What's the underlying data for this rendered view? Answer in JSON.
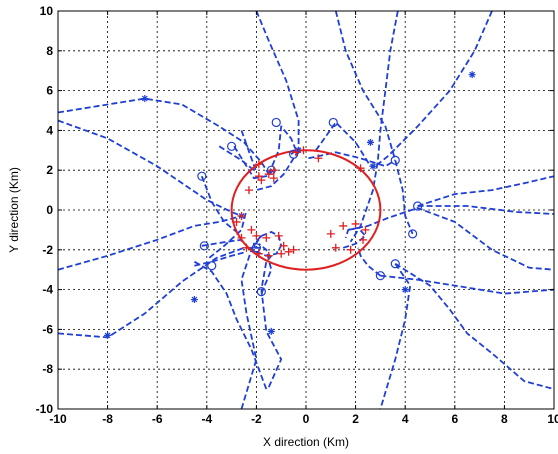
{
  "chart_data": {
    "type": "line",
    "title": "",
    "xlabel": "X direction (Km)",
    "ylabel": "Y direction (Km)",
    "xlim": [
      -10,
      10
    ],
    "ylim": [
      -10,
      10
    ],
    "xticks": [
      "-10",
      "-8",
      "-6",
      "-4",
      "-2",
      "0",
      "2",
      "4",
      "6",
      "8",
      "10"
    ],
    "yticks": [
      "10",
      "8",
      "6",
      "4",
      "2",
      "0",
      "-2",
      "-4",
      "-6",
      "-8",
      "-10"
    ],
    "grid": true,
    "legend": "none",
    "colors": {
      "trajectory": "#1f3fd6",
      "circle": "#e02020",
      "marker": "#e02020"
    },
    "circle": {
      "center": [
        0,
        0
      ],
      "radius_x": 3,
      "radius_y": 3
    },
    "series": [
      {
        "points": [
          [
            -10,
            4.9
          ],
          [
            -7.5,
            5.4
          ],
          [
            -6.5,
            5.6
          ],
          [
            -5,
            5.3
          ],
          [
            -3.5,
            4.2
          ],
          [
            -2.5,
            3.4
          ],
          [
            -1.8,
            2.4
          ],
          [
            -1.5,
            1.8
          ]
        ]
      },
      {
        "points": [
          [
            -10,
            4.5
          ],
          [
            -8,
            3.6
          ],
          [
            -6,
            2.2
          ],
          [
            -4,
            0.5
          ],
          [
            -3,
            -0.1
          ],
          [
            -2.6,
            -0.3
          ]
        ]
      },
      {
        "points": [
          [
            -10,
            -3
          ],
          [
            -8,
            -2.3
          ],
          [
            -6,
            -1.5
          ],
          [
            -4.5,
            -0.8
          ],
          [
            -3.5,
            -0.6
          ],
          [
            -2.6,
            -0.3
          ]
        ]
      },
      {
        "points": [
          [
            -10,
            -6.2
          ],
          [
            -8,
            -6.4
          ],
          [
            -6.5,
            -5.2
          ],
          [
            -5,
            -3.6
          ],
          [
            -3.6,
            -2.4
          ],
          [
            -2.5,
            -1.9
          ],
          [
            -1.8,
            -1.9
          ]
        ]
      },
      {
        "points": [
          [
            -3.9,
            -2.4
          ],
          [
            -3.3,
            -1.8
          ],
          [
            -2.6,
            -1.0
          ],
          [
            -2.4,
            0.0
          ]
        ]
      },
      {
        "points": [
          [
            -4.2,
            -1.8
          ],
          [
            -3.2,
            -1.6
          ],
          [
            -2.6,
            -1.5
          ]
        ]
      },
      {
        "points": [
          [
            -4.2,
            1.7
          ],
          [
            -3.8,
            0.4
          ],
          [
            -3.3,
            -0.6
          ],
          [
            -2.8,
            -1.1
          ]
        ]
      },
      {
        "points": [
          [
            -3.5,
            3.2
          ],
          [
            -2.6,
            2.5
          ],
          [
            -2.0,
            1.9
          ]
        ]
      },
      {
        "points": [
          [
            -2.6,
            4.0
          ],
          [
            -2.2,
            2.6
          ],
          [
            -2.0,
            1.9
          ]
        ]
      },
      {
        "points": [
          [
            -2.9,
            3.2
          ],
          [
            -2.4,
            2.2
          ],
          [
            -2.1,
            1.6
          ],
          [
            -1.6,
            1.7
          ],
          [
            -1.3,
            2.0
          ]
        ]
      },
      {
        "points": [
          [
            -1.8,
            -4.2
          ],
          [
            -1.4,
            -3.0
          ],
          [
            -1.6,
            -2.0
          ],
          [
            -1.9,
            -1.7
          ]
        ]
      },
      {
        "points": [
          [
            -4.5,
            -2.8
          ],
          [
            -3.8,
            -2.6
          ],
          [
            -3.0,
            -2.3
          ],
          [
            -2.4,
            -2.1
          ]
        ]
      },
      {
        "points": [
          [
            -1.5,
            -8.9
          ],
          [
            -1.0,
            -7.5
          ],
          [
            -1.6,
            -6.1
          ],
          [
            -1.8,
            -4.0
          ],
          [
            -1.6,
            -2.6
          ],
          [
            -1.4,
            -2.3
          ]
        ]
      },
      {
        "points": [
          [
            -2.6,
            -10
          ],
          [
            -2.0,
            -7.5
          ],
          [
            -2.4,
            -5.2
          ],
          [
            -2.6,
            -3.5
          ],
          [
            -2.2,
            -2.0
          ],
          [
            -1.8,
            -1.3
          ]
        ]
      },
      {
        "points": [
          [
            -1.8,
            -1.3
          ],
          [
            -1.4,
            -1.1
          ],
          [
            -1.1,
            -1.3
          ],
          [
            -1.0,
            -1.8
          ],
          [
            -1.2,
            -2.2
          ],
          [
            -1.6,
            -2.3
          ],
          [
            -2.0,
            -2.1
          ],
          [
            -2.1,
            -1.7
          ],
          [
            -1.8,
            -1.3
          ]
        ]
      },
      {
        "points": [
          [
            -4.5,
            -2.6
          ],
          [
            -3.8,
            -3.1
          ],
          [
            -3.2,
            -4.2
          ],
          [
            -2.8,
            -5.5
          ],
          [
            -2.2,
            -7.0
          ],
          [
            -1.6,
            -9.0
          ]
        ]
      },
      {
        "points": [
          [
            -1.5,
            1.8
          ],
          [
            -1.1,
            3.0
          ],
          [
            -1.0,
            4.2
          ],
          [
            -0.6,
            3.6
          ],
          [
            -0.4,
            3.0
          ],
          [
            -0.6,
            2.8
          ]
        ]
      },
      {
        "points": [
          [
            -2.0,
            10
          ],
          [
            -1.5,
            8.5
          ],
          [
            -0.8,
            6.5
          ],
          [
            -0.3,
            4.5
          ],
          [
            -0.3,
            3.0
          ]
        ]
      },
      {
        "points": [
          [
            -0.3,
            3.0
          ],
          [
            -0.9,
            1.8
          ],
          [
            -1.4,
            1.2
          ],
          [
            -2.0,
            1.0
          ]
        ]
      },
      {
        "points": [
          [
            0.4,
            3.0
          ],
          [
            1.2,
            4.4
          ],
          [
            2.0,
            3.4
          ],
          [
            2.6,
            2.2
          ]
        ]
      },
      {
        "points": [
          [
            0.1,
            2.6
          ],
          [
            1.2,
            2.9
          ],
          [
            2.2,
            2.6
          ],
          [
            3.2,
            2.2
          ],
          [
            3.6,
            2.5
          ]
        ]
      },
      {
        "points": [
          [
            3.6,
            2.5
          ],
          [
            3.9,
            1.0
          ],
          [
            4.0,
            -0.3
          ],
          [
            4.3,
            -1.2
          ]
        ]
      },
      {
        "points": [
          [
            1.5,
            -1.9
          ],
          [
            2.0,
            -1.7
          ],
          [
            2.4,
            -1.3
          ],
          [
            2.1,
            -0.9
          ],
          [
            1.7,
            -1.0
          ],
          [
            1.6,
            -1.4
          ]
        ]
      },
      {
        "points": [
          [
            1.7,
            -1.0
          ],
          [
            2.5,
            -0.8
          ],
          [
            3.3,
            -0.4
          ],
          [
            4.5,
            0.1
          ],
          [
            6.0,
            -0.6
          ],
          [
            7.5,
            -2.0
          ],
          [
            9.0,
            -2.9
          ],
          [
            10,
            -3.0
          ]
        ]
      },
      {
        "points": [
          [
            4.5,
            0.2
          ],
          [
            6.5,
            0.2
          ],
          [
            8.5,
            -0.1
          ],
          [
            10,
            -0.2
          ]
        ]
      },
      {
        "points": [
          [
            4.5,
            0.2
          ],
          [
            6.0,
            0.8
          ],
          [
            7.5,
            1.0
          ],
          [
            9.0,
            1.4
          ],
          [
            10,
            1.7
          ]
        ]
      },
      {
        "points": [
          [
            1.2,
            10
          ],
          [
            1.6,
            8.0
          ],
          [
            2.3,
            6.0
          ],
          [
            3.2,
            4.2
          ],
          [
            3.6,
            2.5
          ]
        ]
      },
      {
        "points": [
          [
            3.7,
            10
          ],
          [
            3.4,
            8.0
          ],
          [
            3.2,
            6.0
          ],
          [
            3.0,
            4.0
          ],
          [
            2.9,
            2.5
          ],
          [
            2.7,
            1.0
          ],
          [
            2.2,
            -0.8
          ],
          [
            1.8,
            -1.6
          ]
        ]
      },
      {
        "points": [
          [
            7.5,
            10
          ],
          [
            6.8,
            8.0
          ],
          [
            5.8,
            6.0
          ],
          [
            4.5,
            4.2
          ],
          [
            3.3,
            2.7
          ],
          [
            2.8,
            2.2
          ]
        ]
      },
      {
        "points": [
          [
            3.6,
            -2.7
          ],
          [
            4.2,
            -3.8
          ],
          [
            4.0,
            -5.5
          ],
          [
            3.6,
            -7.5
          ],
          [
            3.0,
            -10
          ]
        ]
      },
      {
        "points": [
          [
            3.6,
            -2.7
          ],
          [
            5.0,
            -3.8
          ],
          [
            5.8,
            -5.0
          ],
          [
            6.5,
            -6.2
          ],
          [
            7.5,
            -7.2
          ],
          [
            8.8,
            -8.6
          ],
          [
            10,
            -9.0
          ]
        ]
      },
      {
        "points": [
          [
            3.0,
            -3.3
          ],
          [
            4.5,
            -3.5
          ],
          [
            6.0,
            -3.8
          ],
          [
            8.0,
            -4.2
          ],
          [
            10,
            -4.0
          ]
        ]
      },
      {
        "points": [
          [
            3.0,
            -3.3
          ],
          [
            2.5,
            -2.8
          ],
          [
            2.2,
            -2.3
          ],
          [
            2.1,
            -1.9
          ]
        ]
      }
    ],
    "circles_o": [
      [
        -1.2,
        4.4
      ],
      [
        1.1,
        4.4
      ],
      [
        -3.0,
        3.2
      ],
      [
        -0.5,
        2.8
      ],
      [
        3.6,
        2.5
      ],
      [
        -4.2,
        1.7
      ],
      [
        -4.1,
        -1.8
      ],
      [
        4.5,
        0.2
      ],
      [
        4.3,
        -1.2
      ],
      [
        -3.8,
        -2.8
      ],
      [
        -1.8,
        -4.1
      ],
      [
        3.6,
        -2.7
      ],
      [
        3.0,
        -3.3
      ],
      [
        -2.0,
        -1.9
      ],
      [
        -1.4,
        2.0
      ]
    ],
    "stars": [
      [
        -6.5,
        5.6
      ],
      [
        6.7,
        6.8
      ],
      [
        2.6,
        3.4
      ],
      [
        -4.5,
        -4.5
      ],
      [
        -1.4,
        -6.1
      ],
      [
        -8.0,
        -6.3
      ],
      [
        4.0,
        -4.0
      ],
      [
        -2.6,
        -0.3
      ],
      [
        -0.3,
        3.0
      ],
      [
        2.7,
        2.2
      ]
    ],
    "plus_markers": [
      [
        -1.3,
        2.0
      ],
      [
        -1.8,
        1.5
      ],
      [
        -2.3,
        1.0
      ],
      [
        -1.9,
        1.7
      ],
      [
        -1.5,
        1.8
      ],
      [
        -0.4,
        2.9
      ],
      [
        0.5,
        2.6
      ],
      [
        -0.1,
        3.0
      ],
      [
        2.2,
        2.1
      ],
      [
        -2.6,
        -0.3
      ],
      [
        -2.2,
        -1.0
      ],
      [
        -2.0,
        -1.3
      ],
      [
        -1.6,
        -1.4
      ],
      [
        -1.1,
        -1.3
      ],
      [
        -0.9,
        -1.8
      ],
      [
        -1.0,
        -2.2
      ],
      [
        -1.5,
        -2.3
      ],
      [
        -1.9,
        -2.2
      ],
      [
        -2.4,
        -1.9
      ],
      [
        -0.7,
        -2.1
      ],
      [
        -2.8,
        -0.6
      ],
      [
        -2.6,
        -1.4
      ],
      [
        1.2,
        -1.9
      ],
      [
        1.5,
        -0.8
      ],
      [
        2.0,
        -0.7
      ],
      [
        2.4,
        -1.0
      ],
      [
        2.3,
        -1.5
      ],
      [
        1.8,
        -2.0
      ],
      [
        1.0,
        -1.2
      ],
      [
        -0.5,
        -2.0
      ],
      [
        -1.9,
        2.3
      ],
      [
        -1.3,
        1.6
      ]
    ]
  }
}
